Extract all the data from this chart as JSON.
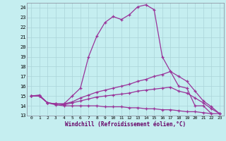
{
  "xlabel": "Windchill (Refroidissement éolien,°C)",
  "bg_color": "#c5eef0",
  "line_color": "#993399",
  "grid_color": "#aad4d8",
  "xlim": [
    -0.5,
    23.5
  ],
  "ylim": [
    13,
    24.5
  ],
  "yticks": [
    13,
    14,
    15,
    16,
    17,
    18,
    19,
    20,
    21,
    22,
    23,
    24
  ],
  "xticks": [
    0,
    1,
    2,
    3,
    4,
    5,
    6,
    7,
    8,
    9,
    10,
    11,
    12,
    13,
    14,
    15,
    16,
    17,
    18,
    19,
    20,
    21,
    22,
    23
  ],
  "series": [
    {
      "x": [
        0,
        1,
        2,
        3,
        4,
        5,
        6,
        7,
        8,
        9,
        10,
        11,
        12,
        13,
        14,
        15,
        16,
        17,
        18,
        19,
        20,
        21,
        22
      ],
      "y": [
        15.0,
        15.1,
        14.3,
        14.2,
        14.2,
        15.0,
        15.8,
        19.0,
        21.1,
        22.5,
        23.1,
        22.8,
        23.3,
        24.1,
        24.3,
        23.8,
        19.0,
        17.5,
        16.0,
        15.8,
        14.0,
        14.0,
        13.2
      ]
    },
    {
      "x": [
        0,
        1,
        2,
        3,
        4,
        5,
        6,
        7,
        8,
        9,
        10,
        11,
        12,
        13,
        14,
        15,
        16,
        17,
        18,
        19,
        20,
        21,
        22,
        23
      ],
      "y": [
        15.0,
        15.0,
        14.3,
        14.2,
        14.2,
        14.4,
        14.8,
        15.1,
        15.4,
        15.6,
        15.8,
        16.0,
        16.2,
        16.5,
        16.7,
        17.0,
        17.2,
        17.5,
        17.0,
        16.5,
        15.5,
        14.5,
        13.9,
        13.2
      ]
    },
    {
      "x": [
        0,
        1,
        2,
        3,
        4,
        5,
        6,
        7,
        8,
        9,
        10,
        11,
        12,
        13,
        14,
        15,
        16,
        17,
        18,
        19,
        20,
        21,
        22,
        23
      ],
      "y": [
        15.0,
        15.0,
        14.3,
        14.2,
        14.1,
        14.3,
        14.5,
        14.7,
        14.9,
        15.0,
        15.1,
        15.2,
        15.3,
        15.5,
        15.6,
        15.7,
        15.8,
        15.9,
        15.5,
        15.3,
        14.8,
        14.3,
        13.7,
        13.2
      ]
    },
    {
      "x": [
        0,
        1,
        2,
        3,
        4,
        5,
        6,
        7,
        8,
        9,
        10,
        11,
        12,
        13,
        14,
        15,
        16,
        17,
        18,
        19,
        20,
        21,
        22,
        23
      ],
      "y": [
        15.0,
        15.0,
        14.3,
        14.1,
        14.0,
        14.0,
        14.0,
        14.0,
        14.0,
        13.9,
        13.9,
        13.9,
        13.8,
        13.8,
        13.7,
        13.7,
        13.6,
        13.6,
        13.5,
        13.4,
        13.4,
        13.3,
        13.2,
        13.2
      ]
    }
  ]
}
